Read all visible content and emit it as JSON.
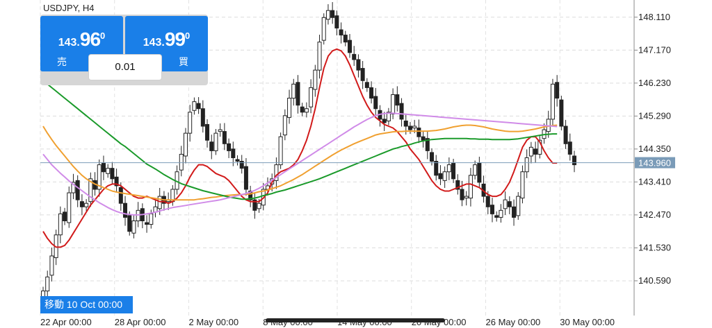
{
  "symbol": "USDJPY, H4",
  "trade": {
    "sell": {
      "small": "143.",
      "big": "96",
      "sup": "0",
      "label": "売"
    },
    "buy": {
      "small": "143.",
      "big": "99",
      "sup": "0",
      "label": "買"
    },
    "lot": "0.01"
  },
  "nav_badge": "移動 10 Oct 00:00",
  "colors": {
    "bull": "#222222",
    "bear": "#222222",
    "red": "#d11a1a",
    "orange": "#f0a030",
    "green": "#1a9a2a",
    "violet": "#d08be8",
    "accent": "#1a7fe8",
    "current": "#7a9bb8"
  },
  "chart_data": {
    "type": "candlestick",
    "x_ticks": [
      "22 Apr 00:00",
      "28 Apr 00:00",
      "2 May 00:00",
      "8 May 00:00",
      "14 May 00:00",
      "20 May 00:00",
      "26 May 00:00",
      "30 May 00:00"
    ],
    "y_ticks": [
      148.11,
      147.17,
      146.23,
      145.29,
      144.35,
      143.41,
      142.47,
      141.53,
      140.59
    ],
    "y_tick_labels": [
      "148.110",
      "147.170",
      "146.230",
      "145.290",
      "144.350",
      "143.410",
      "142.470",
      "141.530",
      "140.590"
    ],
    "ylim": [
      139.6,
      148.6
    ],
    "current_price": 143.96,
    "current_price_label": "143.960",
    "grid": true,
    "closes": [
      140.3,
      140.7,
      141.3,
      141.9,
      142.5,
      142.3,
      143.1,
      143.4,
      142.9,
      142.7,
      142.8,
      143.5,
      143.2,
      143.9,
      143.7,
      143.8,
      143.5,
      143.3,
      142.8,
      142.4,
      142.0,
      142.3,
      142.6,
      142.3,
      142.2,
      142.5,
      142.7,
      143.0,
      142.8,
      142.9,
      143.2,
      143.7,
      144.2,
      144.8,
      145.4,
      145.7,
      145.5,
      145.0,
      144.6,
      144.3,
      144.8,
      144.9,
      144.5,
      144.3,
      144.1,
      144.0,
      143.8,
      143.2,
      142.9,
      142.6,
      142.8,
      143.2,
      143.3,
      143.5,
      143.9,
      144.7,
      145.3,
      145.8,
      146.2,
      145.6,
      145.4,
      145.5,
      146.1,
      146.6,
      147.4,
      148.1,
      148.3,
      148.1,
      147.8,
      147.6,
      147.4,
      147.1,
      146.9,
      146.6,
      146.3,
      146.1,
      145.8,
      145.5,
      145.2,
      145.1,
      145.4,
      145.9,
      145.6,
      145.2,
      145.0,
      144.9,
      145.0,
      144.7,
      144.6,
      144.3,
      144.0,
      143.6,
      143.5,
      143.7,
      143.9,
      143.5,
      143.2,
      142.9,
      143.0,
      143.6,
      143.9,
      143.4,
      143.0,
      142.7,
      142.5,
      142.4,
      142.6,
      142.9,
      142.7,
      142.4,
      143.0,
      143.7,
      144.1,
      144.4,
      144.2,
      144.6,
      144.9,
      145.2,
      146.2,
      145.8,
      145.0,
      144.5,
      144.2,
      143.9
    ],
    "series": [
      {
        "name": "",
        "color": "red",
        "values": [
          142.0,
          141.8,
          141.65,
          141.55,
          141.55,
          141.6,
          141.75,
          141.95,
          142.15,
          142.35,
          142.55,
          142.75,
          142.9,
          143.05,
          143.2,
          143.3,
          143.35,
          143.35,
          143.3,
          143.2,
          143.1,
          143.0,
          142.95,
          142.95,
          143.0,
          142.95,
          142.9,
          142.85,
          142.85,
          142.8,
          142.85,
          142.95,
          143.1,
          143.3,
          143.55,
          143.75,
          143.9,
          143.9,
          143.85,
          143.75,
          143.65,
          143.6,
          143.55,
          143.45,
          143.3,
          143.15,
          143.0,
          142.9,
          142.85,
          142.85,
          142.85,
          142.95,
          143.1,
          143.4,
          143.6,
          143.7,
          143.75,
          143.8,
          143.9,
          144.05,
          144.3,
          144.6,
          145.0,
          145.5,
          146.1,
          146.65,
          147.0,
          147.15,
          147.2,
          147.15,
          147.0,
          146.75,
          146.45,
          146.15,
          145.85,
          145.6,
          145.4,
          145.25,
          145.15,
          145.05,
          145.0,
          144.95,
          144.85,
          144.7,
          144.55,
          144.35,
          144.2,
          144.05,
          143.85,
          143.65,
          143.45,
          143.3,
          143.2,
          143.15,
          143.15,
          143.2,
          143.25,
          143.3,
          143.35,
          143.35,
          143.3,
          143.25,
          143.15,
          143.05,
          143.0,
          143.0,
          143.05,
          143.2,
          143.4,
          143.7,
          144.05,
          144.4,
          144.6,
          144.7,
          144.7,
          144.55,
          144.3,
          144.1,
          143.95,
          143.95
        ]
      },
      {
        "name": "",
        "color": "orange",
        "values": [
          145.0,
          144.8,
          144.62,
          144.45,
          144.3,
          144.15,
          144.0,
          143.85,
          143.72,
          143.6,
          143.5,
          143.42,
          143.35,
          143.3,
          143.25,
          143.2,
          143.15,
          143.12,
          143.1,
          143.08,
          143.06,
          143.04,
          143.02,
          143.0,
          142.98,
          142.96,
          142.94,
          142.92,
          142.9,
          142.9,
          142.9,
          142.9,
          142.9,
          142.9,
          142.9,
          142.9,
          142.92,
          142.93,
          142.95,
          142.97,
          142.98,
          143.0,
          143.02,
          143.03,
          143.04,
          143.05,
          143.05,
          143.06,
          143.07,
          143.1,
          143.13,
          143.15,
          143.18,
          143.22,
          143.26,
          143.3,
          143.36,
          143.42,
          143.48,
          143.55,
          143.62,
          143.7,
          143.78,
          143.86,
          143.94,
          144.02,
          144.1,
          144.18,
          144.25,
          144.32,
          144.38,
          144.44,
          144.5,
          144.55,
          144.6,
          144.65,
          144.7,
          144.75,
          144.78,
          144.8,
          144.82,
          144.84,
          144.85,
          144.85,
          144.86,
          144.86,
          144.86,
          144.86,
          144.86,
          144.86,
          144.87,
          144.88,
          144.9,
          144.92,
          144.95,
          144.98,
          145.0,
          145.02,
          145.03,
          145.03,
          145.02,
          145.0,
          144.98,
          144.95,
          144.92,
          144.9,
          144.88,
          144.86,
          144.85,
          144.85,
          144.85,
          144.86,
          144.88,
          144.9,
          144.92,
          144.95,
          144.98,
          145.0,
          145.02,
          145.03
        ]
      },
      {
        "name": "",
        "color": "green",
        "values": [
          146.3,
          146.2,
          146.1,
          146.0,
          145.9,
          145.8,
          145.7,
          145.6,
          145.5,
          145.4,
          145.3,
          145.2,
          145.1,
          145.0,
          144.9,
          144.8,
          144.7,
          144.6,
          144.5,
          144.42,
          144.32,
          144.22,
          144.12,
          144.02,
          143.92,
          143.85,
          143.78,
          143.7,
          143.62,
          143.55,
          143.48,
          143.42,
          143.36,
          143.32,
          143.28,
          143.24,
          143.2,
          143.16,
          143.13,
          143.1,
          143.07,
          143.04,
          143.01,
          142.98,
          142.96,
          142.94,
          142.92,
          142.92,
          142.93,
          142.95,
          142.98,
          143.02,
          143.05,
          143.08,
          143.12,
          143.15,
          143.18,
          143.22,
          143.26,
          143.3,
          143.34,
          143.38,
          143.42,
          143.46,
          143.5,
          143.55,
          143.6,
          143.65,
          143.7,
          143.75,
          143.8,
          143.85,
          143.9,
          143.95,
          144.0,
          144.05,
          144.1,
          144.15,
          144.2,
          144.25,
          144.3,
          144.35,
          144.38,
          144.42,
          144.45,
          144.48,
          144.52,
          144.55,
          144.58,
          144.6,
          144.62,
          144.63,
          144.64,
          144.65,
          144.65,
          144.65,
          144.65,
          144.65,
          144.65,
          144.64,
          144.64,
          144.63,
          144.63,
          144.63,
          144.62,
          144.62,
          144.62,
          144.62,
          144.62,
          144.63,
          144.64,
          144.66,
          144.68,
          144.7,
          144.72,
          144.74,
          144.76,
          144.77,
          144.78,
          144.78
        ]
      },
      {
        "name": "",
        "color": "violet",
        "values": [
          144.2,
          144.05,
          143.9,
          143.78,
          143.66,
          143.55,
          143.44,
          143.34,
          143.25,
          143.16,
          143.07,
          142.98,
          142.9,
          142.82,
          142.75,
          142.68,
          142.62,
          142.57,
          142.53,
          142.5,
          142.48,
          142.47,
          142.47,
          142.48,
          142.5,
          142.52,
          142.55,
          142.58,
          142.62,
          142.65,
          142.68,
          142.7,
          142.72,
          142.74,
          142.76,
          142.78,
          142.8,
          142.82,
          142.84,
          142.86,
          142.88,
          142.9,
          142.93,
          142.96,
          142.99,
          143.02,
          143.05,
          143.08,
          143.12,
          143.17,
          143.23,
          143.3,
          143.38,
          143.46,
          143.54,
          143.62,
          143.7,
          143.78,
          143.86,
          143.94,
          144.02,
          144.1,
          144.18,
          144.26,
          144.34,
          144.42,
          144.5,
          144.58,
          144.66,
          144.74,
          144.82,
          144.9,
          144.98,
          145.05,
          145.12,
          145.19,
          145.25,
          145.3,
          145.34,
          145.36,
          145.37,
          145.37,
          145.36,
          145.35,
          145.34,
          145.33,
          145.32,
          145.31,
          145.3,
          145.29,
          145.28,
          145.27,
          145.26,
          145.25,
          145.24,
          145.23,
          145.22,
          145.21,
          145.2,
          145.19,
          145.18,
          145.17,
          145.16,
          145.15,
          145.14,
          145.13,
          145.12,
          145.11,
          145.1,
          145.09,
          145.08,
          145.07,
          145.06,
          145.05,
          145.04,
          145.03,
          145.02,
          145.01,
          145.0,
          144.99
        ]
      }
    ]
  }
}
